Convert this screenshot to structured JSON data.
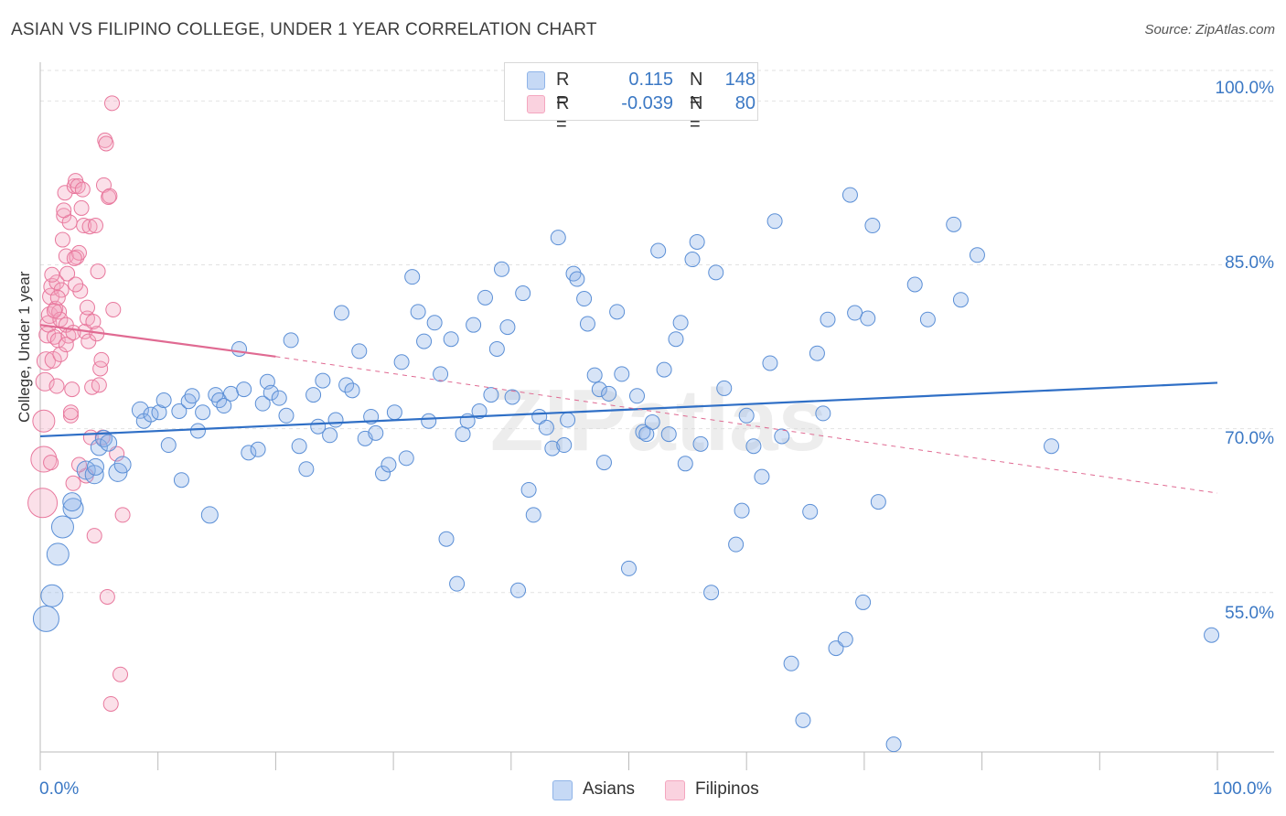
{
  "title": "ASIAN VS FILIPINO COLLEGE, UNDER 1 YEAR CORRELATION CHART",
  "source": "Source: ZipAtlas.com",
  "watermark": "ZIPatlas",
  "legend": {
    "r_label": "R =",
    "n_label": "N =",
    "rows": [
      {
        "r": "0.115",
        "n": "148",
        "color": "#8fb4e8"
      },
      {
        "r": "-0.039",
        "n": "80",
        "color": "#f4a6bf"
      }
    ]
  },
  "colors": {
    "asians_fill": "rgba(140,178,232,0.35)",
    "asians_stroke": "#5b8fd6",
    "asians_line": "#2f6fc6",
    "filipinos_fill": "rgba(244,166,191,0.35)",
    "filipinos_stroke": "#e8789d",
    "filipinos_line": "#e06a92",
    "tick_label": "#3b78c4",
    "grid": "#e2e2e2"
  },
  "chart_data": {
    "type": "scatter",
    "title": "ASIAN VS FILIPINO COLLEGE, UNDER 1 YEAR CORRELATION CHART",
    "xlabel": "",
    "ylabel": "College, Under 1 year",
    "x_tick_labels": [
      "0.0%",
      "100.0%"
    ],
    "y_tick_labels": [
      "55.0%",
      "70.0%",
      "85.0%",
      "100.0%"
    ],
    "xlim": [
      0,
      100
    ],
    "ylim": [
      40.4,
      102.8
    ],
    "grid": "horizontal dashed",
    "legend_position": "top-center",
    "series": [
      {
        "name": "Asians",
        "trend": {
          "x0": 0,
          "y0": 69.3,
          "x1": 100,
          "y1": 74.2
        },
        "points": [
          [
            0.5,
            52.6,
            14
          ],
          [
            1.0,
            54.7,
            12
          ],
          [
            1.5,
            58.5,
            12
          ],
          [
            1.9,
            61.0,
            12
          ],
          [
            2.8,
            62.7,
            11
          ],
          [
            2.7,
            63.3,
            10
          ],
          [
            3.9,
            66.2,
            10
          ],
          [
            4.6,
            65.8,
            10
          ],
          [
            4.7,
            66.5,
            9
          ],
          [
            5.0,
            68.3,
            9
          ],
          [
            5.4,
            69.1,
            9
          ],
          [
            5.8,
            68.7,
            9
          ],
          [
            6.6,
            66.0,
            10
          ],
          [
            7.0,
            66.7,
            9
          ],
          [
            8.5,
            71.7,
            9
          ],
          [
            8.8,
            70.7,
            8
          ],
          [
            9.4,
            71.3,
            8
          ],
          [
            10.1,
            71.5,
            8
          ],
          [
            10.5,
            72.6,
            8
          ],
          [
            10.9,
            68.5,
            8
          ],
          [
            11.8,
            71.6,
            8
          ],
          [
            12.0,
            65.3,
            8
          ],
          [
            12.6,
            72.5,
            8
          ],
          [
            12.9,
            73.0,
            8
          ],
          [
            13.4,
            69.8,
            8
          ],
          [
            13.8,
            71.5,
            8
          ],
          [
            14.4,
            62.1,
            9
          ],
          [
            14.9,
            73.1,
            8
          ],
          [
            15.2,
            72.6,
            8
          ],
          [
            15.6,
            72.1,
            8
          ],
          [
            16.2,
            73.2,
            8
          ],
          [
            16.9,
            77.3,
            8
          ],
          [
            17.3,
            73.6,
            8
          ],
          [
            17.7,
            67.8,
            8
          ],
          [
            18.5,
            68.1,
            8
          ],
          [
            18.9,
            72.3,
            8
          ],
          [
            19.3,
            74.3,
            8
          ],
          [
            19.6,
            73.3,
            8
          ],
          [
            20.3,
            72.8,
            8
          ],
          [
            20.9,
            71.2,
            8
          ],
          [
            21.3,
            78.1,
            8
          ],
          [
            22.0,
            68.4,
            8
          ],
          [
            22.6,
            66.3,
            8
          ],
          [
            23.2,
            73.1,
            8
          ],
          [
            23.6,
            70.2,
            8
          ],
          [
            24.0,
            74.4,
            8
          ],
          [
            24.6,
            69.4,
            8
          ],
          [
            25.1,
            70.8,
            8
          ],
          [
            25.6,
            80.6,
            8
          ],
          [
            26.0,
            74.0,
            8
          ],
          [
            26.5,
            73.5,
            8
          ],
          [
            27.1,
            77.1,
            8
          ],
          [
            27.6,
            69.1,
            8
          ],
          [
            28.1,
            71.1,
            8
          ],
          [
            28.5,
            69.6,
            8
          ],
          [
            29.1,
            65.9,
            8
          ],
          [
            29.6,
            66.7,
            8
          ],
          [
            30.1,
            71.5,
            8
          ],
          [
            30.7,
            76.1,
            8
          ],
          [
            31.1,
            67.3,
            8
          ],
          [
            31.6,
            83.9,
            8
          ],
          [
            32.1,
            80.7,
            8
          ],
          [
            32.6,
            78.0,
            8
          ],
          [
            33.0,
            70.7,
            8
          ],
          [
            33.5,
            79.7,
            8
          ],
          [
            34.0,
            75.0,
            8
          ],
          [
            34.5,
            59.9,
            8
          ],
          [
            34.9,
            78.2,
            8
          ],
          [
            35.4,
            55.8,
            8
          ],
          [
            35.9,
            69.5,
            8
          ],
          [
            36.3,
            70.7,
            8
          ],
          [
            36.8,
            79.5,
            8
          ],
          [
            37.3,
            71.6,
            8
          ],
          [
            37.8,
            82.0,
            8
          ],
          [
            38.3,
            73.1,
            8
          ],
          [
            38.8,
            77.3,
            8
          ],
          [
            39.2,
            84.6,
            8
          ],
          [
            39.7,
            79.3,
            8
          ],
          [
            40.1,
            72.9,
            8
          ],
          [
            40.6,
            55.2,
            8
          ],
          [
            41.0,
            82.4,
            8
          ],
          [
            41.5,
            64.4,
            8
          ],
          [
            41.9,
            62.1,
            8
          ],
          [
            42.4,
            71.1,
            8
          ],
          [
            43.0,
            70.1,
            8
          ],
          [
            43.5,
            68.2,
            8
          ],
          [
            44.0,
            87.5,
            8
          ],
          [
            44.5,
            68.5,
            8
          ],
          [
            44.8,
            70.8,
            8
          ],
          [
            45.3,
            84.2,
            8
          ],
          [
            45.6,
            83.7,
            8
          ],
          [
            46.2,
            81.9,
            8
          ],
          [
            46.5,
            79.6,
            8
          ],
          [
            47.1,
            74.9,
            8
          ],
          [
            47.5,
            73.6,
            8
          ],
          [
            47.9,
            66.9,
            8
          ],
          [
            48.3,
            73.2,
            8
          ],
          [
            49.0,
            80.7,
            8
          ],
          [
            49.4,
            75.0,
            8
          ],
          [
            50.0,
            57.2,
            8
          ],
          [
            50.7,
            73.0,
            8
          ],
          [
            51.2,
            69.7,
            8
          ],
          [
            51.5,
            69.5,
            8
          ],
          [
            52.0,
            70.6,
            8
          ],
          [
            52.5,
            86.3,
            8
          ],
          [
            53.0,
            75.4,
            8
          ],
          [
            53.4,
            69.5,
            8
          ],
          [
            54.0,
            78.2,
            8
          ],
          [
            54.4,
            79.7,
            8
          ],
          [
            54.8,
            66.8,
            8
          ],
          [
            55.4,
            85.5,
            8
          ],
          [
            55.8,
            87.1,
            8
          ],
          [
            56.1,
            68.6,
            8
          ],
          [
            57.0,
            55.0,
            8
          ],
          [
            57.4,
            84.3,
            8
          ],
          [
            58.1,
            73.7,
            8
          ],
          [
            59.1,
            59.4,
            8
          ],
          [
            59.6,
            62.5,
            8
          ],
          [
            60.0,
            71.2,
            8
          ],
          [
            60.6,
            68.4,
            8
          ],
          [
            61.3,
            65.6,
            8
          ],
          [
            62.0,
            76.0,
            8
          ],
          [
            62.4,
            89.0,
            8
          ],
          [
            63.0,
            69.3,
            8
          ],
          [
            63.8,
            48.5,
            8
          ],
          [
            64.8,
            43.3,
            8
          ],
          [
            65.4,
            62.4,
            8
          ],
          [
            66.0,
            76.9,
            8
          ],
          [
            66.5,
            71.4,
            8
          ],
          [
            66.9,
            80.0,
            8
          ],
          [
            67.6,
            49.9,
            8
          ],
          [
            68.4,
            50.7,
            8
          ],
          [
            68.8,
            91.4,
            8
          ],
          [
            69.2,
            80.6,
            8
          ],
          [
            69.9,
            54.1,
            8
          ],
          [
            70.3,
            80.1,
            8
          ],
          [
            70.7,
            88.6,
            8
          ],
          [
            71.2,
            63.3,
            8
          ],
          [
            72.5,
            41.1,
            8
          ],
          [
            74.3,
            83.2,
            8
          ],
          [
            75.4,
            80.0,
            8
          ],
          [
            77.6,
            88.7,
            8
          ],
          [
            78.2,
            81.8,
            8
          ],
          [
            79.6,
            85.9,
            8
          ],
          [
            85.9,
            68.4,
            8
          ],
          [
            99.5,
            51.1,
            8
          ]
        ]
      },
      {
        "name": "Filipinos",
        "trend": {
          "x0": 0,
          "y0": 79.5,
          "x1": 20,
          "y1": 76.6,
          "dashed_to_x": 100,
          "dashed_to_y": 64.1
        },
        "points": [
          [
            0.2,
            63.2,
            16
          ],
          [
            0.3,
            67.2,
            14
          ],
          [
            0.3,
            70.7,
            12
          ],
          [
            0.4,
            74.3,
            10
          ],
          [
            0.5,
            76.2,
            10
          ],
          [
            0.6,
            78.6,
            9
          ],
          [
            0.7,
            79.6,
            9
          ],
          [
            0.8,
            80.4,
            9
          ],
          [
            0.9,
            82.1,
            9
          ],
          [
            1.0,
            83.0,
            9
          ],
          [
            1.1,
            76.3,
            9
          ],
          [
            1.2,
            78.4,
            8
          ],
          [
            1.3,
            81.0,
            8
          ],
          [
            1.4,
            83.4,
            8
          ],
          [
            1.5,
            78.1,
            8
          ],
          [
            1.6,
            80.7,
            8
          ],
          [
            1.7,
            80.0,
            8
          ],
          [
            1.8,
            82.7,
            8
          ],
          [
            1.9,
            87.3,
            8
          ],
          [
            2.0,
            89.5,
            8
          ],
          [
            2.1,
            91.6,
            8
          ],
          [
            2.2,
            85.8,
            8
          ],
          [
            2.3,
            84.2,
            8
          ],
          [
            2.4,
            78.5,
            8
          ],
          [
            2.5,
            88.9,
            8
          ],
          [
            2.6,
            71.2,
            8
          ],
          [
            2.7,
            73.6,
            8
          ],
          [
            2.8,
            65.0,
            8
          ],
          [
            2.9,
            92.2,
            8
          ],
          [
            3.0,
            92.7,
            8
          ],
          [
            3.1,
            85.7,
            8
          ],
          [
            3.2,
            92.2,
            8
          ],
          [
            3.3,
            86.1,
            8
          ],
          [
            3.4,
            82.6,
            8
          ],
          [
            3.5,
            90.2,
            8
          ],
          [
            3.6,
            91.9,
            8
          ],
          [
            3.7,
            88.6,
            8
          ],
          [
            3.8,
            78.9,
            8
          ],
          [
            3.9,
            65.7,
            8
          ],
          [
            4.0,
            80.1,
            8
          ],
          [
            4.1,
            78.0,
            8
          ],
          [
            4.2,
            88.5,
            8
          ],
          [
            4.3,
            69.2,
            8
          ],
          [
            4.4,
            73.8,
            8
          ],
          [
            4.5,
            79.8,
            8
          ],
          [
            4.6,
            60.2,
            8
          ],
          [
            4.7,
            88.6,
            8
          ],
          [
            4.8,
            78.7,
            8
          ],
          [
            4.9,
            84.4,
            8
          ],
          [
            5.0,
            74.0,
            8
          ],
          [
            5.1,
            75.5,
            8
          ],
          [
            5.2,
            76.3,
            8
          ],
          [
            5.3,
            69.2,
            8
          ],
          [
            5.4,
            92.3,
            8
          ],
          [
            5.5,
            96.4,
            8
          ],
          [
            5.6,
            96.1,
            8
          ],
          [
            5.7,
            54.6,
            8
          ],
          [
            5.8,
            91.2,
            8
          ],
          [
            5.9,
            91.3,
            8
          ],
          [
            6.0,
            44.8,
            8
          ],
          [
            6.1,
            99.8,
            8
          ],
          [
            6.2,
            80.9,
            8
          ],
          [
            6.5,
            67.7,
            8
          ],
          [
            6.8,
            47.5,
            8
          ],
          [
            7.0,
            62.1,
            8
          ],
          [
            1.0,
            84.1,
            8
          ],
          [
            1.7,
            76.8,
            8
          ],
          [
            2.2,
            77.7,
            8
          ],
          [
            2.9,
            85.6,
            8
          ],
          [
            3.3,
            66.7,
            8
          ],
          [
            0.9,
            66.9,
            8
          ],
          [
            1.4,
            73.9,
            8
          ],
          [
            2.0,
            90.0,
            8
          ],
          [
            2.6,
            71.5,
            8
          ],
          [
            1.2,
            80.8,
            8
          ],
          [
            4.0,
            81.1,
            8
          ],
          [
            3.0,
            83.2,
            8
          ],
          [
            2.2,
            79.5,
            8
          ],
          [
            1.5,
            82.0,
            8
          ],
          [
            2.8,
            78.8,
            8
          ]
        ]
      }
    ]
  }
}
